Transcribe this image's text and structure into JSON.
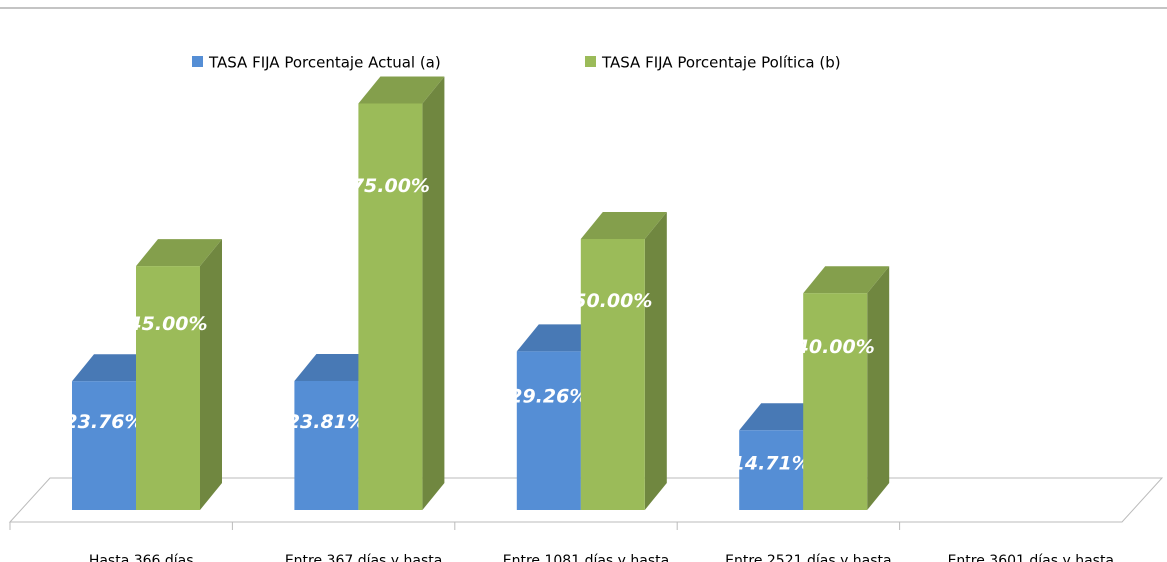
{
  "chart_data": {
    "type": "bar3d",
    "categories": [
      "Hasta 366 días",
      "Entre 367 días y hasta",
      "Entre 1081 días y hasta",
      "Entre 2521 días y hasta",
      "Entre 3601 días y hasta"
    ],
    "series": [
      {
        "name": "TASA FIJA Porcentaje Actual (a)",
        "color": "#558ed5",
        "values": [
          23.76,
          23.81,
          29.26,
          14.71,
          null
        ],
        "value_labels": [
          "23.76%",
          "23.81%",
          "29.26%",
          "14.71%",
          null
        ]
      },
      {
        "name": "TASA FIJA Porcentaje Política (b)",
        "color": "#9bbb59",
        "values": [
          45,
          75,
          50,
          40,
          null
        ],
        "value_labels": [
          "45.00%",
          "75.00%",
          "50.00%",
          "40.00%",
          null
        ]
      }
    ]
  }
}
